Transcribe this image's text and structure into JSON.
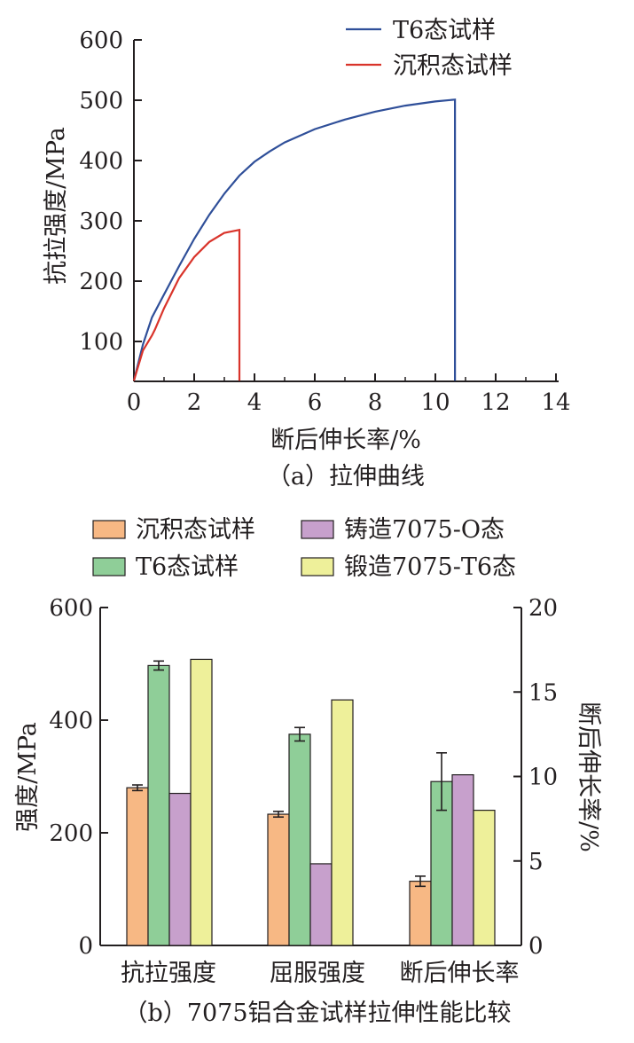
{
  "chart_data": [
    {
      "type": "line",
      "xlabel": "断后伸长率/%",
      "ylabel": "抗拉强度/MPa",
      "caption": "（a）拉伸曲线",
      "xlim": [
        0,
        14
      ],
      "ylim": [
        35,
        600
      ],
      "xticks": [
        "0",
        "2",
        "4",
        "6",
        "8",
        "10",
        "12",
        "14"
      ],
      "yticks": [
        "100",
        "200",
        "300",
        "400",
        "500",
        "600"
      ],
      "xtick_values": [
        0,
        2,
        4,
        6,
        8,
        10,
        12,
        14
      ],
      "ytick_values": [
        100,
        200,
        300,
        400,
        500,
        600
      ],
      "legend_position": "top-right",
      "series": [
        {
          "name": "T6态试样",
          "color": "#2f4f99",
          "x": [
            0,
            0.3,
            0.6,
            1.0,
            1.5,
            2.0,
            2.5,
            3.0,
            3.5,
            4.0,
            4.5,
            5.0,
            6.0,
            7.0,
            8.0,
            9.0,
            10.0,
            10.65,
            10.65
          ],
          "y": [
            35,
            95,
            140,
            178,
            225,
            270,
            310,
            345,
            375,
            398,
            415,
            430,
            452,
            468,
            481,
            491,
            498,
            501,
            35
          ]
        },
        {
          "name": "沉积态试样",
          "color": "#d9342b",
          "x": [
            0,
            0.3,
            0.6,
            0.7,
            1.0,
            1.5,
            2.0,
            2.5,
            3.0,
            3.5,
            3.5
          ],
          "y": [
            35,
            85,
            110,
            120,
            155,
            205,
            240,
            265,
            280,
            285,
            35
          ]
        }
      ]
    },
    {
      "type": "bar",
      "caption": "（b）7075铝合金试样拉伸性能比较",
      "categories": [
        "抗拉强度",
        "屈服强度",
        "断后伸长率"
      ],
      "ylabel": "强度/MPa",
      "y2label": "断后伸长率/%",
      "ylim": [
        0,
        600
      ],
      "y2lim": [
        0,
        20
      ],
      "yticks": [
        "0",
        "200",
        "400",
        "600"
      ],
      "y2ticks": [
        "0",
        "5",
        "10",
        "15",
        "20"
      ],
      "ytick_values": [
        0,
        200,
        400,
        600
      ],
      "y2tick_values": [
        0,
        5,
        10,
        15,
        20
      ],
      "legend_position": "top",
      "note": "断后伸长率 category plotted on right axis",
      "series": [
        {
          "name": "沉积态试样",
          "color": "#f7b884",
          "values": [
            280,
            233,
            3.8
          ],
          "errors": [
            5,
            5,
            0.3
          ]
        },
        {
          "name": "T6态试样",
          "color": "#8fce98",
          "values": [
            497,
            375,
            9.7
          ],
          "errors": [
            8,
            12,
            1.7
          ]
        },
        {
          "name": "铸造7075-O态",
          "color": "#c7a0cc",
          "values": [
            270,
            145,
            10.1
          ],
          "errors": [
            null,
            null,
            null
          ]
        },
        {
          "name": "锻造7075-T6态",
          "color": "#eef09a",
          "values": [
            508,
            436,
            8.0
          ],
          "errors": [
            null,
            null,
            null
          ]
        }
      ]
    }
  ]
}
